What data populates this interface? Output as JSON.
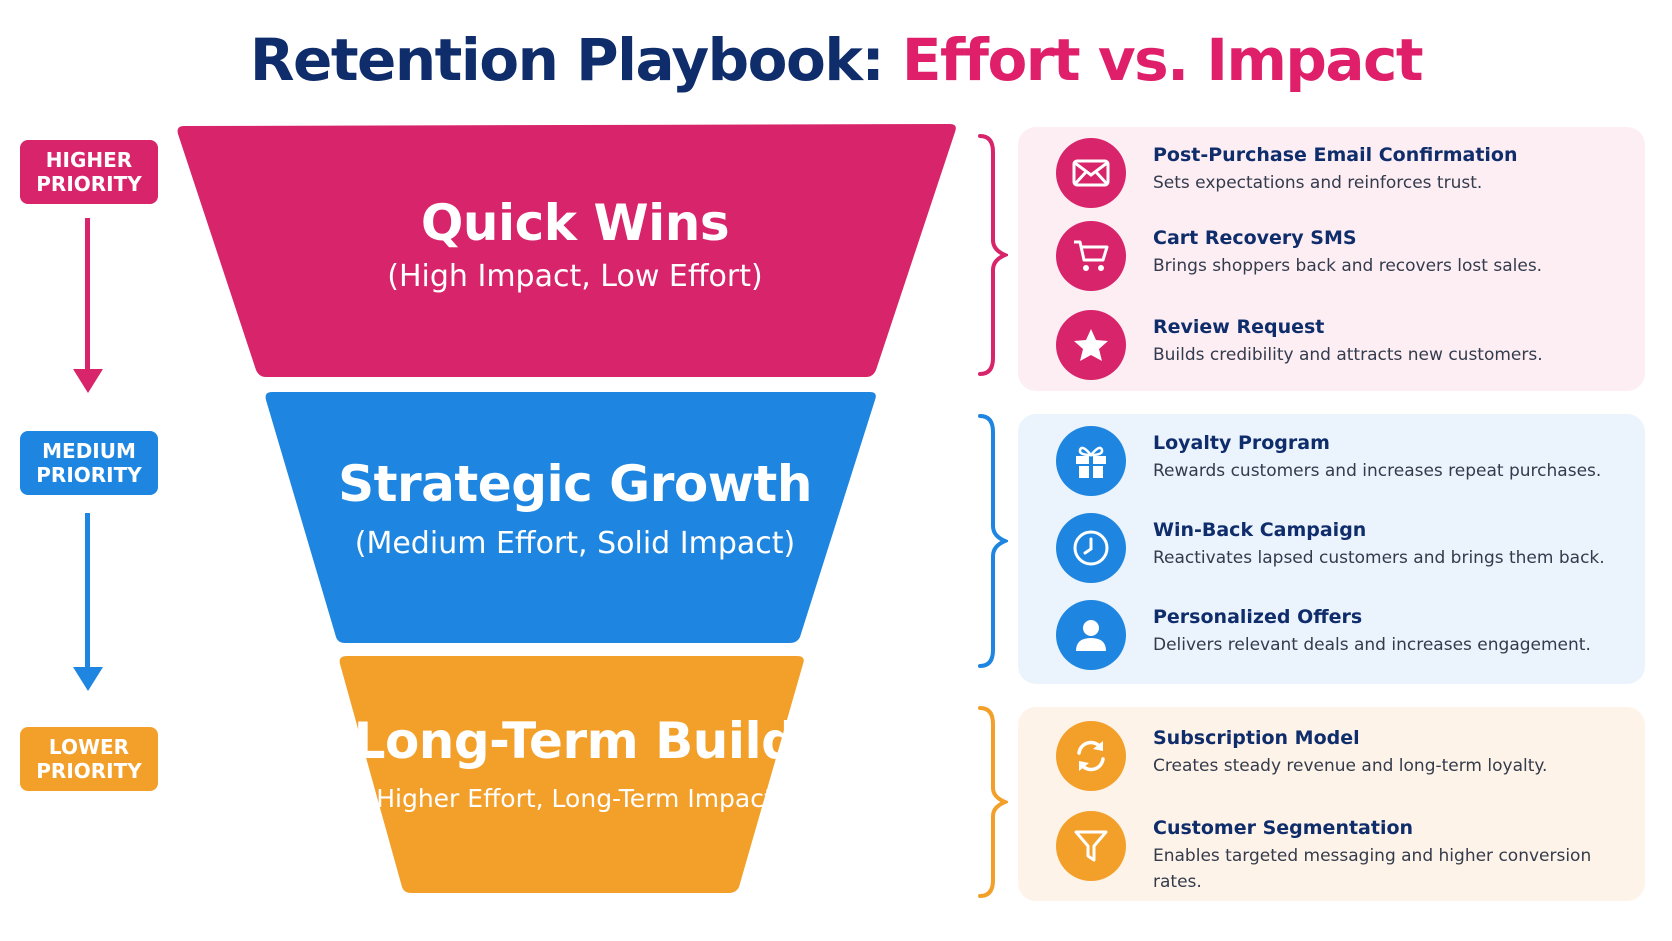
{
  "title": {
    "part1": "Retention Playbook:",
    "part2": "Effort vs. Impact"
  },
  "colors": {
    "pink": "#d8246a",
    "blue": "#1e86e0",
    "orange": "#f3a02b",
    "navy": "#0f2d6b"
  },
  "priorities": [
    {
      "line1": "HIGHER",
      "line2": "PRIORITY"
    },
    {
      "line1": "MEDIUM",
      "line2": "PRIORITY"
    },
    {
      "line1": "LOWER",
      "line2": "PRIORITY"
    }
  ],
  "tiers": [
    {
      "title": "Quick Wins",
      "subtitle": "(High Impact, Low Effort)",
      "items": [
        {
          "icon": "envelope-icon",
          "title": "Post-Purchase Email Confirmation",
          "desc": "Sets expectations and reinforces trust."
        },
        {
          "icon": "cart-icon",
          "title": "Cart Recovery SMS",
          "desc": "Brings shoppers back and recovers lost sales."
        },
        {
          "icon": "star-icon",
          "title": "Review Request",
          "desc": "Builds credibility and attracts new customers."
        }
      ]
    },
    {
      "title": "Strategic Growth",
      "subtitle": "(Medium Effort, Solid Impact)",
      "items": [
        {
          "icon": "gift-icon",
          "title": "Loyalty Program",
          "desc": "Rewards customers and increases repeat purchases."
        },
        {
          "icon": "clock-icon",
          "title": "Win-Back Campaign",
          "desc": "Reactivates lapsed customers and brings them back."
        },
        {
          "icon": "user-icon",
          "title": "Personalized Offers",
          "desc": "Delivers relevant deals and increases engagement."
        }
      ]
    },
    {
      "title": "Long-Term Build",
      "subtitle": "(Higher Effort, Long-Term Impact)",
      "items": [
        {
          "icon": "refresh-icon",
          "title": "Subscription Model",
          "desc": "Creates steady revenue and long-term loyalty."
        },
        {
          "icon": "filter-icon",
          "title": "Customer Segmentation",
          "desc": "Enables targeted messaging and higher conversion rates."
        }
      ]
    }
  ]
}
